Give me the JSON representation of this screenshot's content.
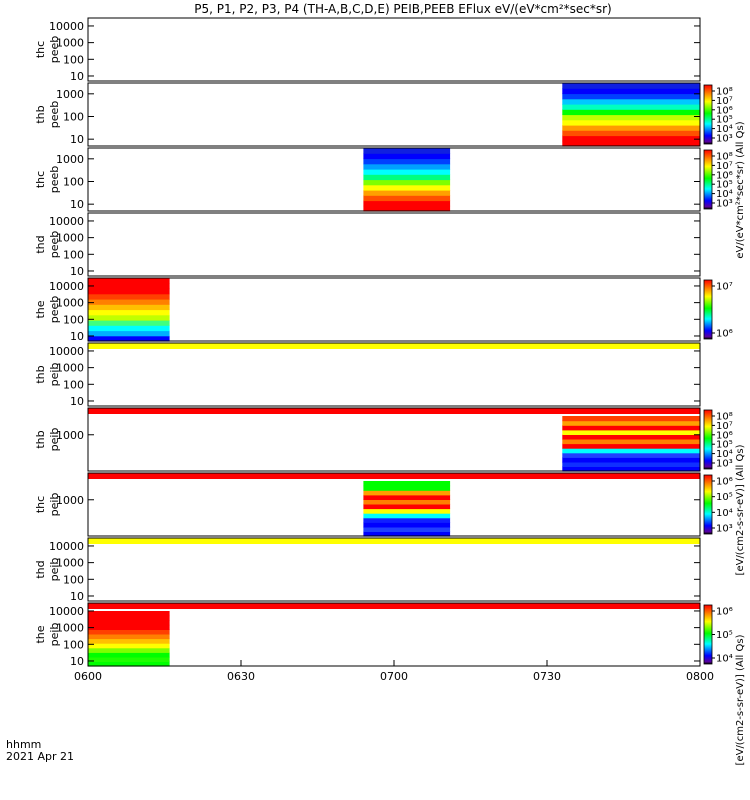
{
  "chart_data": {
    "type": "heatmap",
    "title": "P5, P1, P2, P3, P4 (TH-A,B,C,D,E) PEIB,PEEB EFlux eV/(eV*cm²*sec*sr)",
    "time_axis": {
      "ticks": [
        "0600",
        "0630",
        "0700",
        "0730",
        "0800"
      ],
      "label_line1": "hhmm",
      "label_line2": "2021 Apr 21",
      "range_hhmm": [
        "0600",
        "0800"
      ]
    },
    "colors": {
      "red": "#ff0000",
      "yellow": "#ffff00",
      "green": "#00ff00",
      "cyan": "#00ffff",
      "blue": "#0000ff"
    },
    "colorbar_units": [
      "eV/(eV*cm²*sec*sr) (All Qs)",
      "[eV/(cm2-s-sr-eV)] (All Qs)",
      "[eV/(cm2-s-sr-eV)] (All Qs)"
    ],
    "panels": [
      {
        "line1": "thc",
        "line2": "peeb",
        "yticks": [
          "10000",
          "1000",
          "100",
          "10"
        ],
        "ylog": true,
        "ylim": [
          5,
          30000
        ],
        "blocks": [],
        "colorbar": null
      },
      {
        "line1": "thb",
        "line2": "peeb",
        "yticks": [
          "1000",
          "100",
          "10"
        ],
        "ylog": true,
        "ylim": [
          5,
          3000
        ],
        "blocks": [
          {
            "start": "0733",
            "end": "0800",
            "profile": "ee_b"
          }
        ],
        "colorbar": [
          "10⁸",
          "10⁷",
          "10⁶",
          "10⁵",
          "10⁴",
          "10³"
        ]
      },
      {
        "line1": "thc",
        "line2": "peeb",
        "yticks": [
          "1000",
          "100",
          "10"
        ],
        "ylog": true,
        "ylim": [
          5,
          3000
        ],
        "blocks": [
          {
            "start": "0654",
            "end": "0711",
            "profile": "ee_c"
          }
        ],
        "colorbar": [
          "10⁸",
          "10⁷",
          "10⁶",
          "10⁵",
          "10⁴",
          "10³"
        ]
      },
      {
        "line1": "thd",
        "line2": "peeb",
        "yticks": [
          "10000",
          "1000",
          "100",
          "10"
        ],
        "ylog": true,
        "ylim": [
          5,
          30000
        ],
        "blocks": [],
        "colorbar": null
      },
      {
        "line1": "the",
        "line2": "peeb",
        "yticks": [
          "10000",
          "1000",
          "100",
          "10"
        ],
        "ylog": true,
        "ylim": [
          5,
          30000
        ],
        "blocks": [
          {
            "start": "0600",
            "end": "0616",
            "profile": "ee_e"
          }
        ],
        "colorbar": [
          "10⁷",
          "10⁶"
        ]
      },
      {
        "line1": "thb",
        "line2": "peib",
        "yticks": [
          "10000",
          "1000",
          "100",
          "10"
        ],
        "ylog": true,
        "ylim": [
          5,
          30000
        ],
        "blocks": [],
        "colorbar": null,
        "topband": "yellow"
      },
      {
        "line1": "thb",
        "line2": "peib",
        "yticks": [
          "1000"
        ],
        "ylog": true,
        "ylim": [
          10,
          30000
        ],
        "blocks": [
          {
            "start": "0733",
            "end": "0800",
            "profile": "ei_b"
          }
        ],
        "colorbar": [
          "10⁸",
          "10⁷",
          "10⁶",
          "10⁵",
          "10⁴",
          "10³"
        ],
        "topband": "red"
      },
      {
        "line1": "thc",
        "line2": "peib",
        "yticks": [
          "1000"
        ],
        "ylog": true,
        "ylim": [
          10,
          30000
        ],
        "blocks": [
          {
            "start": "0654",
            "end": "0711",
            "profile": "ei_c"
          }
        ],
        "colorbar": [
          "10⁶",
          "10⁵",
          "10⁴",
          "10³"
        ],
        "topband": "red"
      },
      {
        "line1": "thd",
        "line2": "peib",
        "yticks": [
          "10000",
          "1000",
          "100",
          "10"
        ],
        "ylog": true,
        "ylim": [
          5,
          30000
        ],
        "blocks": [],
        "colorbar": null,
        "topband": "yellow"
      },
      {
        "line1": "the",
        "line2": "peib",
        "yticks": [
          "10000",
          "1000",
          "100",
          "10"
        ],
        "ylog": true,
        "ylim": [
          5,
          30000
        ],
        "blocks": [
          {
            "start": "0600",
            "end": "0616",
            "profile": "ei_e"
          }
        ],
        "colorbar": [
          "10⁶",
          "10⁵",
          "10⁴"
        ],
        "topband": "red"
      }
    ]
  }
}
